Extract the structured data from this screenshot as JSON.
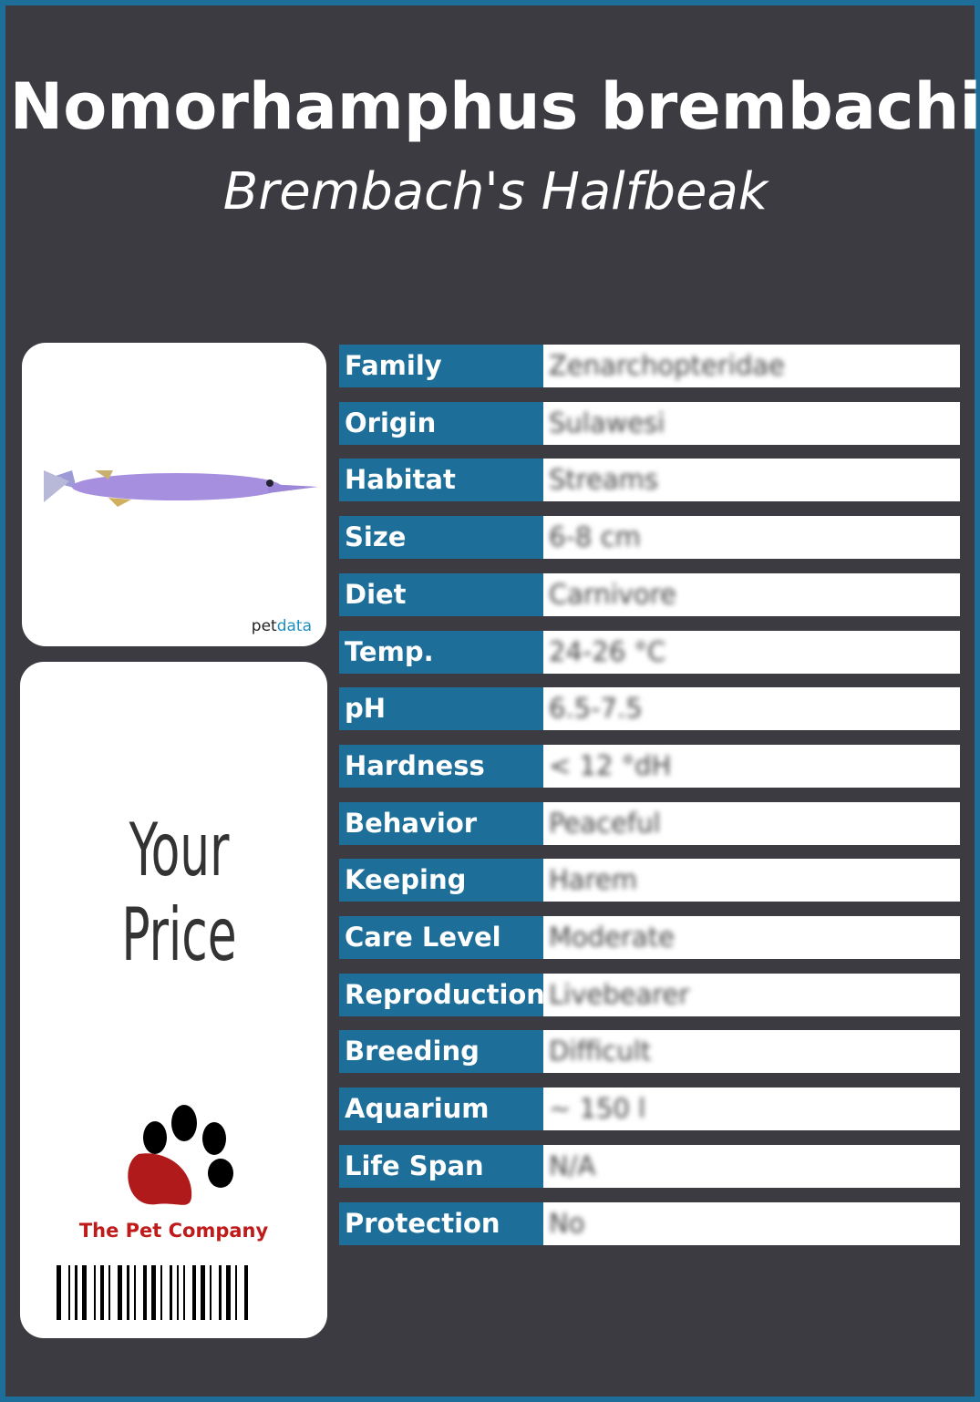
{
  "header": {
    "title": "Nomorhamphus brembachi",
    "subtitle": "Brembach's Halfbeak"
  },
  "image_card": {
    "credit_part1": "pet",
    "credit_part2": "data"
  },
  "price_card": {
    "price_label": "Your Price",
    "brand": "The Pet Company"
  },
  "table": {
    "rows": [
      [
        "Family",
        "Zenarchopteridae"
      ],
      [
        "Origin",
        "Sulawesi"
      ],
      [
        "Habitat",
        "Streams"
      ],
      [
        "Size",
        "6-8 cm"
      ],
      [
        "Diet",
        "Carnivore"
      ],
      [
        "Temp.",
        "24-26 °C"
      ],
      [
        "pH",
        "6.5-7.5"
      ],
      [
        "Hardness",
        "< 12 °dH"
      ],
      [
        "Behavior",
        "Peaceful"
      ],
      [
        "Keeping",
        "Harem"
      ],
      [
        "Care Level",
        "Moderate"
      ],
      [
        "Reproduction",
        "Livebearer"
      ],
      [
        "Breeding",
        "Difficult"
      ],
      [
        "Aquarium",
        "~ 150 l"
      ],
      [
        "Life Span",
        "N/A"
      ],
      [
        "Protection",
        "No"
      ]
    ]
  }
}
